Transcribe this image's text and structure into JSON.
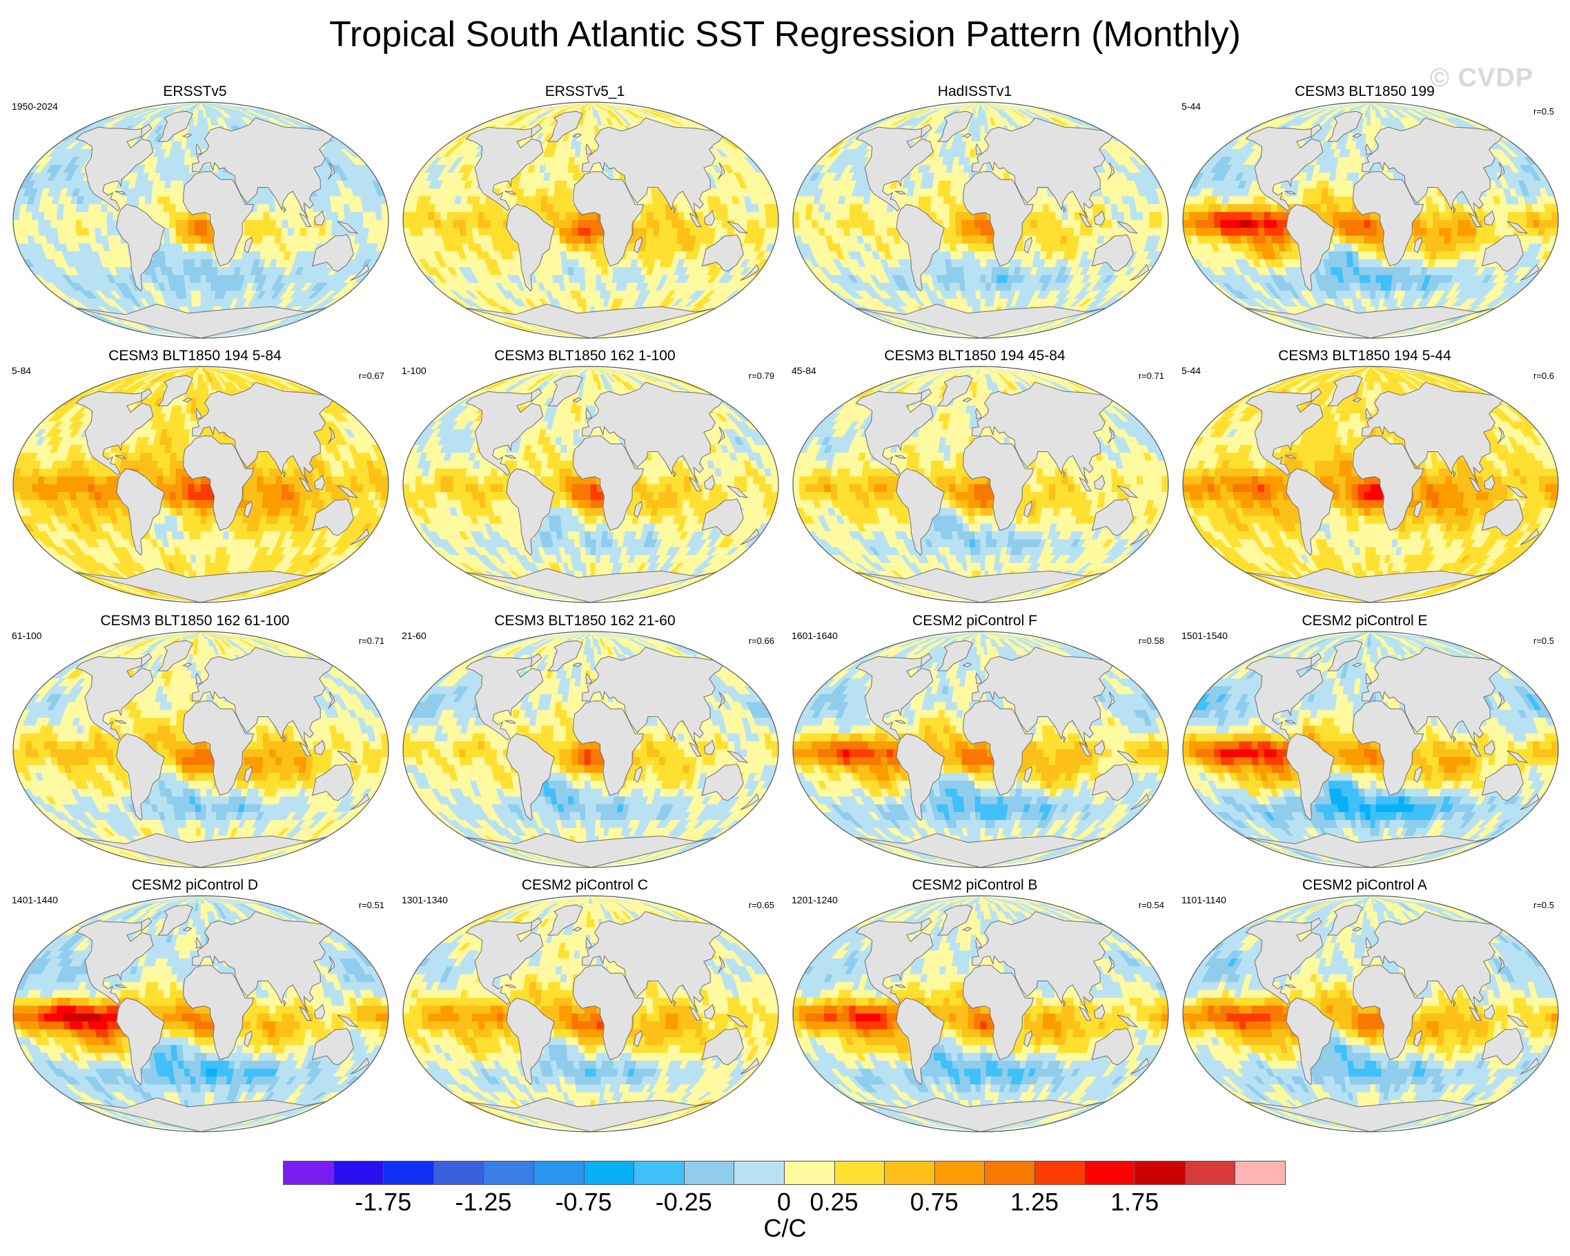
{
  "title": "Tropical South Atlantic SST Regression Pattern (Monthly)",
  "watermark": "© CVDP",
  "units": "C/C",
  "colorbar": {
    "tick_labels": [
      "-1.75",
      "-1.25",
      "-0.75",
      "-0.25",
      "0",
      "0.25",
      "0.75",
      "1.25",
      "1.75"
    ],
    "colors": [
      "#7a1df0",
      "#2a10f0",
      "#1030f5",
      "#3a60e0",
      "#3a7ee8",
      "#2896f0",
      "#08b0f8",
      "#40c0f8",
      "#90ccec",
      "#b8e2f4",
      "#fff9a0",
      "#ffe030",
      "#fcc018",
      "#fc9c00",
      "#f87800",
      "#fc3c00",
      "#fc0000",
      "#cc0000",
      "#d83a3a",
      "#fcb4b4"
    ]
  },
  "land_color": "#e2e2e2",
  "panels": [
    {
      "title": "ERSSTv5",
      "period": "1950-2024",
      "r": "",
      "pattern": {
        "enso": 0.15,
        "sa": 1.0,
        "gulf": -0.3,
        "io": 0.3,
        "south": -0.3,
        "bias": -0.05
      }
    },
    {
      "title": "ERSSTv5_1",
      "period": "",
      "r": "",
      "pattern": {
        "enso": 0.3,
        "sa": 1.1,
        "gulf": -0.2,
        "io": 0.4,
        "south": -0.2,
        "bias": 0.15
      }
    },
    {
      "title": "HadISSTv1",
      "period": "",
      "r": "",
      "pattern": {
        "enso": 0.2,
        "sa": 1.0,
        "gulf": -0.2,
        "io": 0.3,
        "south": -0.4,
        "bias": 0.05
      }
    },
    {
      "title": "CESM3 BLT1850 199",
      "period": "5-44",
      "r": "r=0.5",
      "pattern": {
        "enso": 1.6,
        "sa": 1.1,
        "gulf": -0.5,
        "io": 0.8,
        "south": -0.5,
        "bias": 0.0
      }
    },
    {
      "title": "CESM3 BLT1850 194 5-84",
      "period": "5-84",
      "r": "r=0.67",
      "pattern": {
        "enso": 0.6,
        "sa": 1.1,
        "gulf": -0.3,
        "io": 0.6,
        "south": -0.2,
        "bias": 0.3
      }
    },
    {
      "title": "CESM3 BLT1850 162 1-100",
      "period": "1-100",
      "r": "r=0.79",
      "pattern": {
        "enso": 0.35,
        "sa": 1.2,
        "gulf": -0.4,
        "io": 0.4,
        "south": -0.3,
        "bias": 0.1
      }
    },
    {
      "title": "CESM3 BLT1850 194 45-84",
      "period": "45-84",
      "r": "r=0.71",
      "pattern": {
        "enso": 0.5,
        "sa": 1.1,
        "gulf": -0.4,
        "io": 0.3,
        "south": -0.4,
        "bias": 0.1
      }
    },
    {
      "title": "CESM3 BLT1850 194 5-44",
      "period": "5-44",
      "r": "r=0.6",
      "pattern": {
        "enso": 0.7,
        "sa": 1.1,
        "gulf": -0.3,
        "io": 0.6,
        "south": -0.2,
        "bias": 0.3
      }
    },
    {
      "title": "CESM3 BLT1850 162 61-100",
      "period": "61-100",
      "r": "r=0.71",
      "pattern": {
        "enso": 0.5,
        "sa": 1.0,
        "gulf": -0.4,
        "io": 0.7,
        "south": -0.5,
        "bias": 0.1
      }
    },
    {
      "title": "CESM3 BLT1850 162 21-60",
      "period": "21-60",
      "r": "r=0.66",
      "pattern": {
        "enso": 0.3,
        "sa": 1.2,
        "gulf": -0.6,
        "io": 0.4,
        "south": -0.4,
        "bias": 0.05
      }
    },
    {
      "title": "CESM2 piControl F",
      "period": "1601-1640",
      "r": "r=0.58",
      "pattern": {
        "enso": 1.3,
        "sa": 1.0,
        "gulf": -0.5,
        "io": 0.7,
        "south": -0.6,
        "bias": 0.0
      }
    },
    {
      "title": "CESM2 piControl E",
      "period": "1501-1540",
      "r": "r=0.5",
      "pattern": {
        "enso": 1.6,
        "sa": 1.0,
        "gulf": -0.6,
        "io": 0.8,
        "south": -0.8,
        "bias": -0.05
      }
    },
    {
      "title": "CESM2 piControl D",
      "period": "1401-1440",
      "r": "r=0.51",
      "pattern": {
        "enso": 1.8,
        "sa": 1.0,
        "gulf": -0.5,
        "io": 0.7,
        "south": -0.6,
        "bias": -0.05
      }
    },
    {
      "title": "CESM2 piControl C",
      "period": "1301-1340",
      "r": "r=0.65",
      "pattern": {
        "enso": 0.7,
        "sa": 1.1,
        "gulf": -0.4,
        "io": 0.6,
        "south": -0.5,
        "bias": 0.1
      }
    },
    {
      "title": "CESM2 piControl B",
      "period": "1201-1240",
      "r": "r=0.54",
      "pattern": {
        "enso": 1.4,
        "sa": 1.0,
        "gulf": -0.4,
        "io": 0.7,
        "south": -0.6,
        "bias": 0.0
      }
    },
    {
      "title": "CESM2 piControl A",
      "period": "1101-1140",
      "r": "r=0.5",
      "pattern": {
        "enso": 1.3,
        "sa": 1.0,
        "gulf": -0.6,
        "io": 0.7,
        "south": -0.5,
        "bias": 0.0
      }
    }
  ]
}
